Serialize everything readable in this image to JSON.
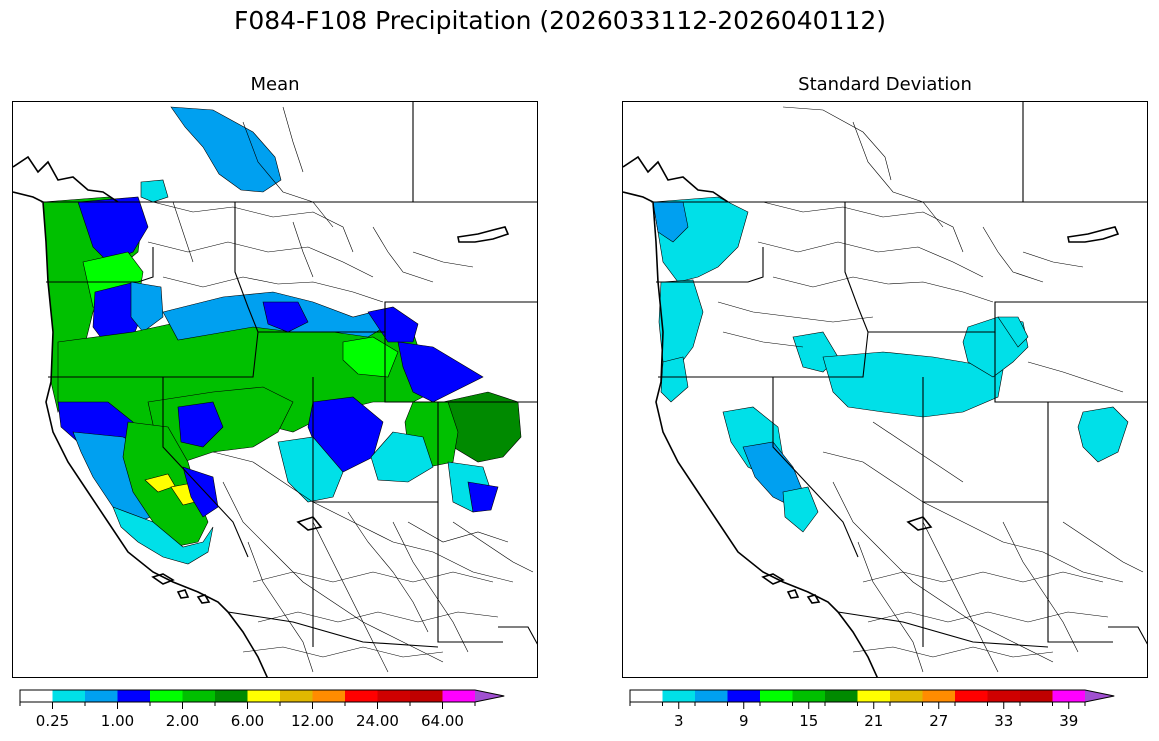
{
  "figure": {
    "title": "F084-F108 Precipitation (2026033112-2026040112)"
  },
  "panels": {
    "mean": {
      "title": "Mean"
    },
    "std": {
      "title": "Standard Deviation"
    }
  },
  "colorbars": {
    "mean": {
      "colors": [
        "#ffffff",
        "#00e0e8",
        "#00a0f0",
        "#0000ff",
        "#00ff00",
        "#00c000",
        "#008a00",
        "#ffff00",
        "#e0b800",
        "#ff8c00",
        "#ff0000",
        "#d00000",
        "#c00000",
        "#ff00ff",
        "#a050d0"
      ],
      "tick_labels": [
        "0.25",
        "1.00",
        "2.00",
        "6.00",
        "12.00",
        "24.00",
        "64.00"
      ],
      "tick_boundaries": [
        1,
        3,
        5,
        7,
        9,
        11,
        13
      ]
    },
    "std": {
      "colors": [
        "#ffffff",
        "#00e0e8",
        "#00a0f0",
        "#0000ff",
        "#00ff00",
        "#00c000",
        "#008a00",
        "#ffff00",
        "#e0b800",
        "#ff8c00",
        "#ff0000",
        "#d00000",
        "#c00000",
        "#ff00ff",
        "#a050d0"
      ],
      "tick_labels": [
        "3",
        "9",
        "15",
        "21",
        "27",
        "33",
        "39"
      ],
      "tick_centers": [
        1,
        3,
        5,
        7,
        9,
        11,
        13
      ]
    }
  },
  "legend_colors": {
    "basin_outline": "#000000",
    "state_border": "#000000"
  }
}
